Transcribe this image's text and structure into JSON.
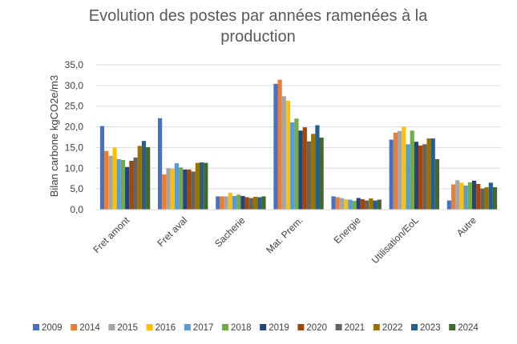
{
  "chart_data": {
    "type": "bar",
    "title_line1": "Evolution des postes par années ramenées à la",
    "title_line2": "production",
    "ylabel": "Bilan carbone kgCO2e/m3",
    "xlabel": "",
    "ylim": [
      0,
      35
    ],
    "ytick_values": [
      0,
      5,
      10,
      15,
      20,
      25,
      30,
      35
    ],
    "ytick_labels": [
      "0,0",
      "5,0",
      "10,0",
      "15,0",
      "20,0",
      "25,0",
      "30,0",
      "35,0"
    ],
    "grid": true,
    "legend_position": "bottom",
    "categories": [
      "Fret amont",
      "Fret aval",
      "Sacherie",
      "Mat. Prem.",
      "Energie",
      "Utilisation/EoL",
      "Autre"
    ],
    "series": [
      {
        "name": "2009",
        "color": "#4472C4",
        "values": [
          20.2,
          22.1,
          3.2,
          30.4,
          3.2,
          16.9,
          2.2
        ]
      },
      {
        "name": "2014",
        "color": "#ED7D31",
        "values": [
          14.2,
          8.5,
          3.2,
          31.4,
          3.0,
          18.6,
          6.1
        ]
      },
      {
        "name": "2015",
        "color": "#A5A5A5",
        "values": [
          13.0,
          10.0,
          3.2,
          27.4,
          2.8,
          19.0,
          7.1
        ]
      },
      {
        "name": "2016",
        "color": "#FFC000",
        "values": [
          15.0,
          9.9,
          4.1,
          26.3,
          2.5,
          20.0,
          6.5
        ]
      },
      {
        "name": "2017",
        "color": "#5B9BD5",
        "values": [
          12.2,
          11.2,
          3.3,
          21.1,
          2.4,
          15.8,
          5.8
        ]
      },
      {
        "name": "2018",
        "color": "#70AD47",
        "values": [
          12.0,
          10.2,
          3.6,
          22.0,
          2.1,
          19.1,
          6.6
        ]
      },
      {
        "name": "2019",
        "color": "#264478",
        "values": [
          10.3,
          9.7,
          3.3,
          19.1,
          2.8,
          16.4,
          7.0
        ]
      },
      {
        "name": "2020",
        "color": "#9E480E",
        "values": [
          11.8,
          9.7,
          3.0,
          19.9,
          2.5,
          15.5,
          6.2
        ]
      },
      {
        "name": "2021",
        "color": "#636363",
        "values": [
          12.6,
          9.2,
          2.8,
          16.5,
          2.2,
          15.8,
          5.1
        ]
      },
      {
        "name": "2022",
        "color": "#997300",
        "values": [
          15.4,
          11.3,
          3.1,
          18.3,
          2.7,
          17.2,
          5.4
        ]
      },
      {
        "name": "2023",
        "color": "#255E91",
        "values": [
          16.6,
          11.4,
          3.0,
          20.4,
          2.2,
          17.2,
          6.5
        ]
      },
      {
        "name": "2024",
        "color": "#43682B",
        "values": [
          15.1,
          11.3,
          3.2,
          17.4,
          2.4,
          12.2,
          5.4
        ]
      }
    ]
  }
}
